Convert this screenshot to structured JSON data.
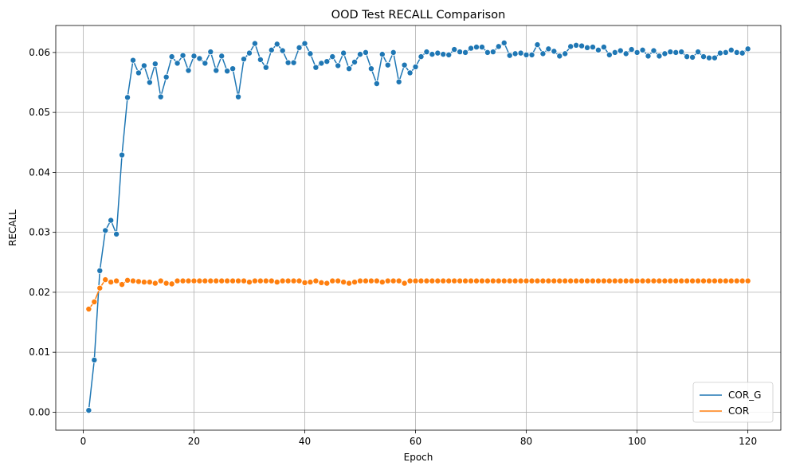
{
  "chart_data": {
    "type": "line",
    "title": "OOD Test RECALL Comparison",
    "xlabel": "Epoch",
    "ylabel": "RECALL",
    "xlim": [
      -4.95,
      125.95
    ],
    "ylim": [
      -0.003,
      0.0645
    ],
    "xticks": [
      0,
      20,
      40,
      60,
      80,
      100,
      120
    ],
    "xtick_labels": [
      "0",
      "20",
      "40",
      "60",
      "80",
      "100",
      "120"
    ],
    "yticks": [
      0.0,
      0.01,
      0.02,
      0.03,
      0.04,
      0.05,
      0.06
    ],
    "ytick_labels": [
      "0.00",
      "0.01",
      "0.02",
      "0.03",
      "0.04",
      "0.05",
      "0.06"
    ],
    "grid": true,
    "legend_position": "lower-right",
    "markers": "circle",
    "x": [
      1,
      2,
      3,
      4,
      5,
      6,
      7,
      8,
      9,
      10,
      11,
      12,
      13,
      14,
      15,
      16,
      17,
      18,
      19,
      20,
      21,
      22,
      23,
      24,
      25,
      26,
      27,
      28,
      29,
      30,
      31,
      32,
      33,
      34,
      35,
      36,
      37,
      38,
      39,
      40,
      41,
      42,
      43,
      44,
      45,
      46,
      47,
      48,
      49,
      50,
      51,
      52,
      53,
      54,
      55,
      56,
      57,
      58,
      59,
      60,
      61,
      62,
      63,
      64,
      65,
      66,
      67,
      68,
      69,
      70,
      71,
      72,
      73,
      74,
      75,
      76,
      77,
      78,
      79,
      80,
      81,
      82,
      83,
      84,
      85,
      86,
      87,
      88,
      89,
      90,
      91,
      92,
      93,
      94,
      95,
      96,
      97,
      98,
      99,
      100,
      101,
      102,
      103,
      104,
      105,
      106,
      107,
      108,
      109,
      110,
      111,
      112,
      113,
      114,
      115,
      116,
      117,
      118,
      119,
      120
    ],
    "series": [
      {
        "name": "COR_G",
        "color": "#1f77b4",
        "values": [
          0.0003,
          0.0087,
          0.0236,
          0.0303,
          0.032,
          0.0297,
          0.0429,
          0.0525,
          0.0587,
          0.0566,
          0.0578,
          0.055,
          0.0581,
          0.0526,
          0.0559,
          0.0593,
          0.0582,
          0.0595,
          0.057,
          0.0594,
          0.059,
          0.0582,
          0.0601,
          0.057,
          0.0594,
          0.0569,
          0.0573,
          0.0526,
          0.0589,
          0.0599,
          0.0615,
          0.0588,
          0.0575,
          0.0604,
          0.0614,
          0.0603,
          0.0583,
          0.0583,
          0.0608,
          0.0615,
          0.0598,
          0.0575,
          0.0582,
          0.0585,
          0.0593,
          0.0578,
          0.0599,
          0.0573,
          0.0584,
          0.0597,
          0.06,
          0.0573,
          0.0548,
          0.0597,
          0.0579,
          0.06,
          0.0551,
          0.0579,
          0.0566,
          0.0576,
          0.0593,
          0.0601,
          0.0597,
          0.0599,
          0.0597,
          0.0596,
          0.0605,
          0.0601,
          0.06,
          0.0607,
          0.0609,
          0.0609,
          0.06,
          0.0601,
          0.061,
          0.0616,
          0.0595,
          0.0598,
          0.0599,
          0.0596,
          0.0596,
          0.0613,
          0.0598,
          0.0606,
          0.0602,
          0.0594,
          0.0598,
          0.061,
          0.0612,
          0.0611,
          0.0608,
          0.0609,
          0.0604,
          0.0609,
          0.0596,
          0.06,
          0.0603,
          0.0598,
          0.0605,
          0.06,
          0.0604,
          0.0594,
          0.0603,
          0.0594,
          0.0598,
          0.0601,
          0.06,
          0.0601,
          0.0593,
          0.0592,
          0.0601,
          0.0593,
          0.0591,
          0.0591,
          0.0599,
          0.06,
          0.0604,
          0.06,
          0.0599,
          0.0606
        ]
      },
      {
        "name": "COR",
        "color": "#ff7f0e",
        "values": [
          0.0172,
          0.0184,
          0.0207,
          0.0221,
          0.0217,
          0.0219,
          0.0213,
          0.022,
          0.0219,
          0.0218,
          0.0217,
          0.0217,
          0.0215,
          0.0219,
          0.0215,
          0.0214,
          0.0219,
          0.0219,
          0.0219,
          0.0219,
          0.0219,
          0.0219,
          0.0219,
          0.0219,
          0.0219,
          0.0219,
          0.0219,
          0.0219,
          0.0219,
          0.0217,
          0.0219,
          0.0219,
          0.0219,
          0.0219,
          0.0217,
          0.0219,
          0.0219,
          0.0219,
          0.0219,
          0.0216,
          0.0217,
          0.0219,
          0.0216,
          0.0215,
          0.0219,
          0.0219,
          0.0217,
          0.0215,
          0.0217,
          0.0219,
          0.0219,
          0.0219,
          0.0219,
          0.0217,
          0.0219,
          0.0219,
          0.0219,
          0.0215,
          0.0219,
          0.0219,
          0.0219,
          0.0219,
          0.0219,
          0.0219,
          0.0219,
          0.0219,
          0.0219,
          0.0219,
          0.0219,
          0.0219,
          0.0219,
          0.0219,
          0.0219,
          0.0219,
          0.0219,
          0.0219,
          0.0219,
          0.0219,
          0.0219,
          0.0219,
          0.0219,
          0.0219,
          0.0219,
          0.0219,
          0.0219,
          0.0219,
          0.0219,
          0.0219,
          0.0219,
          0.0219,
          0.0219,
          0.0219,
          0.0219,
          0.0219,
          0.0219,
          0.0219,
          0.0219,
          0.0219,
          0.0219,
          0.0219,
          0.0219,
          0.0219,
          0.0219,
          0.0219,
          0.0219,
          0.0219,
          0.0219,
          0.0219,
          0.0219,
          0.0219,
          0.0219,
          0.0219,
          0.0219,
          0.0219,
          0.0219,
          0.0219,
          0.0219,
          0.0219,
          0.0219,
          0.0219
        ]
      }
    ]
  }
}
